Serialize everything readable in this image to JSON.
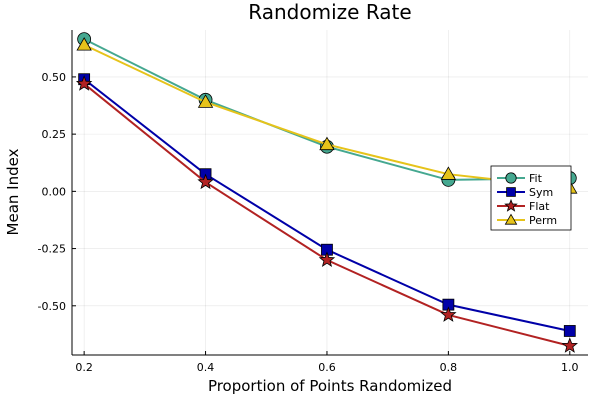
{
  "chart_data": {
    "type": "line",
    "title": "Randomize Rate",
    "xlabel": "Proportion of Points Randomized",
    "ylabel": "Mean Index",
    "x": [
      0.2,
      0.4,
      0.6,
      0.8,
      1.0
    ],
    "xlim": [
      0.18,
      1.03
    ],
    "ylim": [
      -0.715,
      0.705
    ],
    "xticks": [
      0.2,
      0.4,
      0.6,
      0.8,
      1.0
    ],
    "xtick_labels": [
      "0.2",
      "0.4",
      "0.6",
      "0.8",
      "1.0"
    ],
    "yticks": [
      -0.5,
      -0.25,
      0.0,
      0.25,
      0.5
    ],
    "ytick_labels": [
      "-0.50",
      "-0.25",
      "0.00",
      "0.25",
      "0.50"
    ],
    "grid": true,
    "legend_position": "right",
    "series": [
      {
        "name": "Fit",
        "marker": "circle",
        "color": "#45a890",
        "values": [
          0.665,
          0.4,
          0.195,
          0.05,
          0.058
        ]
      },
      {
        "name": "Sym",
        "marker": "square",
        "color": "#0000a8",
        "values": [
          0.49,
          0.075,
          -0.255,
          -0.495,
          -0.61
        ]
      },
      {
        "name": "Flat",
        "marker": "star",
        "color": "#b22222",
        "values": [
          0.47,
          0.04,
          -0.3,
          -0.54,
          -0.675
        ]
      },
      {
        "name": "Perm",
        "marker": "triangle",
        "color": "#e6c31a",
        "values": [
          0.64,
          0.39,
          0.205,
          0.075,
          0.015
        ]
      }
    ]
  }
}
